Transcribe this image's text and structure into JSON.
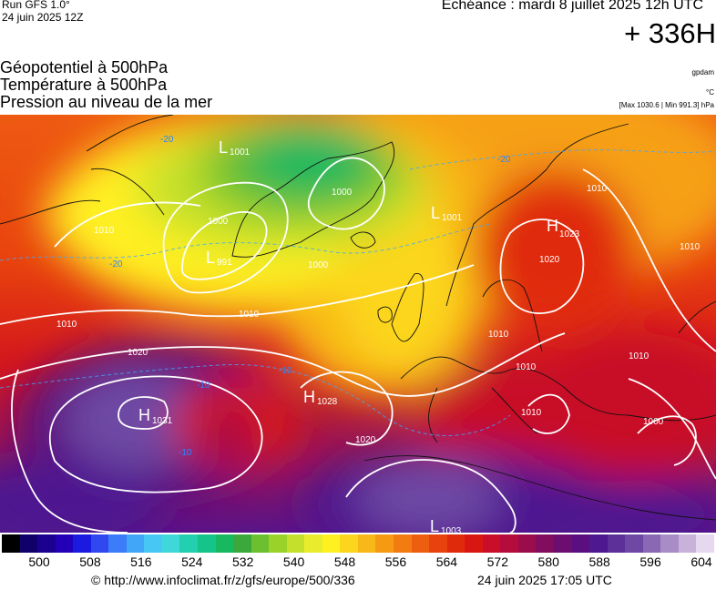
{
  "header": {
    "run_label": "Run GFS 1.0°",
    "run_date": "24 juin 2025 12Z",
    "echeance": "Echéance : mardi 8 juillet 2025 12h UTC",
    "lead_time": "+ 336H"
  },
  "titles": {
    "line1": "Géopotentiel à 500hPa",
    "line2": "Température à 500hPa",
    "line3": "Pression au niveau de la mer"
  },
  "units": {
    "geopotential": "gpdam",
    "temperature": "°C",
    "pressure_extremes": "[Max 1030.6 | Min 991.3] hPa"
  },
  "map": {
    "pressure_centers": [
      {
        "type": "L",
        "value": "1001"
      },
      {
        "type": "L",
        "value": "991"
      },
      {
        "type": "L",
        "value": "1001"
      },
      {
        "type": "H",
        "value": "1023"
      },
      {
        "type": "H",
        "value": "1028"
      },
      {
        "type": "H",
        "value": "1031"
      },
      {
        "type": "L",
        "value": "1003"
      }
    ],
    "isobar_labels": [
      "1010",
      "1000",
      "1000",
      "1000",
      "1010",
      "1020",
      "1010",
      "1020",
      "1010",
      "1010",
      "1010",
      "1000",
      "1020",
      "1010",
      "1010",
      "1010"
    ],
    "temperature_labels": [
      "-20",
      "-20",
      "-20",
      "-10",
      "-10",
      "-10"
    ]
  },
  "colorbar": {
    "colors": [
      "#000000",
      "#10006a",
      "#1c0090",
      "#2300b8",
      "#1a1ae0",
      "#2f48f0",
      "#3c7cf8",
      "#42a6f8",
      "#47c7f4",
      "#3fd8d8",
      "#22cfae",
      "#14c488",
      "#18b860",
      "#3aa83a",
      "#6ac02e",
      "#9ad22a",
      "#c4e02c",
      "#e8ec2a",
      "#fff020",
      "#fcd61c",
      "#f8b818",
      "#f69a14",
      "#f27c12",
      "#ee5e10",
      "#e8420e",
      "#e02a0c",
      "#d81612",
      "#c80e28",
      "#b40c3c",
      "#9a0c4c",
      "#820c5e",
      "#6c0e70",
      "#5a0e80",
      "#4e1890",
      "#5c3098",
      "#6e48a4",
      "#8a68b4",
      "#a88cc6",
      "#c8b2da",
      "#e6d8ee"
    ],
    "ticks": [
      "500",
      "508",
      "516",
      "524",
      "532",
      "540",
      "548",
      "556",
      "564",
      "572",
      "580",
      "588",
      "596",
      "604"
    ]
  },
  "footer": {
    "url": "© http://www.infoclimat.fr/z/gfs/europe/500/336",
    "generated": "24 juin 2025 17:05 UTC"
  }
}
